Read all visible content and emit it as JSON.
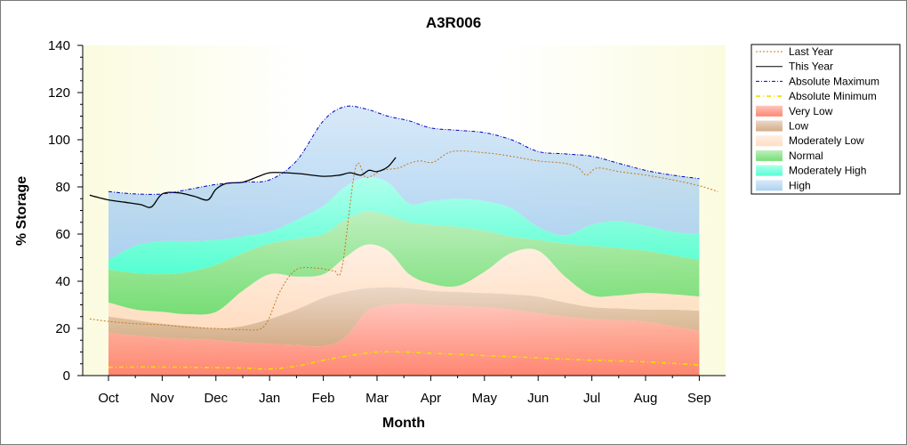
{
  "chart_data": {
    "type": "area",
    "title": "A3R006",
    "xlabel": "Month",
    "ylabel": "% Storage",
    "categories": [
      "Oct",
      "Nov",
      "Dec",
      "Jan",
      "Feb",
      "Mar",
      "Apr",
      "May",
      "Jun",
      "Jul",
      "Aug",
      "Sep"
    ],
    "ylim": [
      0,
      140
    ],
    "yticks": [
      0,
      20,
      40,
      60,
      80,
      100,
      120,
      140
    ],
    "grid": false,
    "legend_position": "right",
    "bands": [
      {
        "name": "Very Low",
        "color": "#ff7f6a",
        "x": [
          0,
          0.5,
          1,
          1.5,
          2,
          2.5,
          3,
          3.5,
          4,
          4.4,
          4.8,
          5.2,
          5.6,
          6,
          6.5,
          7,
          7.5,
          8,
          8.5,
          9,
          9.5,
          10,
          10.5,
          11
        ],
        "lower": [
          0,
          0,
          0,
          0,
          0,
          0,
          0,
          0,
          0,
          0,
          0,
          0,
          0,
          0,
          0,
          0,
          0,
          0,
          0,
          0,
          0,
          0,
          0,
          0
        ],
        "upper": [
          18,
          17,
          16,
          15.5,
          15,
          14,
          13.5,
          13,
          12.5,
          16,
          27,
          30,
          30.5,
          30,
          29.5,
          29,
          28,
          26.5,
          25,
          24,
          23.5,
          23,
          21,
          19
        ]
      },
      {
        "name": "Low",
        "color": "#d2a882",
        "x": [
          0,
          0.5,
          1,
          1.5,
          2,
          2.5,
          3,
          3.5,
          4,
          4.4,
          4.8,
          5.2,
          5.6,
          6,
          6.5,
          7,
          7.5,
          8,
          8.5,
          9,
          9.5,
          10,
          10.5,
          11
        ],
        "lower": [
          18,
          17,
          16,
          15.5,
          15,
          14,
          13.5,
          13,
          12.5,
          16,
          27,
          30,
          30.5,
          30,
          29.5,
          29,
          28,
          26.5,
          25,
          24,
          23.5,
          23,
          21,
          19
        ],
        "upper": [
          25,
          23.5,
          22,
          21,
          20,
          21,
          24,
          28,
          33,
          35.5,
          37,
          37.5,
          37,
          36,
          35.5,
          35,
          34.5,
          33.5,
          31,
          29,
          28.5,
          28,
          28,
          27.5
        ]
      },
      {
        "name": "Moderately Low",
        "color": "#ffdcc0",
        "x": [
          0,
          0.5,
          1,
          1.5,
          2,
          2.5,
          3,
          3.5,
          4,
          4.4,
          4.8,
          5.2,
          5.6,
          6,
          6.5,
          7,
          7.5,
          8,
          8.5,
          9,
          9.5,
          10,
          10.5,
          11
        ],
        "lower": [
          25,
          23.5,
          22,
          21,
          20,
          21,
          24,
          28,
          33,
          35.5,
          37,
          37.5,
          37,
          36,
          35.5,
          35,
          34.5,
          33.5,
          31,
          29,
          28.5,
          28,
          28,
          27.5
        ],
        "upper": [
          31,
          28,
          27,
          26,
          27,
          36,
          43,
          42,
          43,
          50,
          55.5,
          53,
          43,
          39,
          38,
          44,
          52,
          53,
          42,
          34,
          34,
          35,
          34.5,
          33.5
        ]
      },
      {
        "name": "Normal",
        "color": "#6fdc6f",
        "x": [
          0,
          0.5,
          1,
          1.5,
          2,
          2.5,
          3,
          3.5,
          4,
          4.4,
          4.8,
          5.2,
          5.6,
          6,
          6.5,
          7,
          7.5,
          8,
          8.5,
          9,
          9.5,
          10,
          10.5,
          11
        ],
        "lower": [
          31,
          28,
          27,
          26,
          27,
          36,
          43,
          42,
          43,
          50,
          55.5,
          53,
          43,
          39,
          38,
          44,
          52,
          53,
          42,
          34,
          34,
          35,
          34.5,
          33.5
        ],
        "upper": [
          45,
          43.5,
          43,
          44,
          47,
          52,
          56,
          58,
          60,
          66,
          69.5,
          68,
          65,
          64,
          63,
          61.5,
          59,
          57.5,
          56,
          55,
          54,
          53,
          51,
          49
        ]
      },
      {
        "name": "Moderately High",
        "color": "#4dffd2",
        "x": [
          0,
          0.5,
          1,
          1.5,
          2,
          2.5,
          3,
          3.5,
          4,
          4.4,
          4.8,
          5.2,
          5.6,
          6,
          6.5,
          7,
          7.5,
          8,
          8.5,
          9,
          9.5,
          10,
          10.5,
          11
        ],
        "lower": [
          45,
          43.5,
          43,
          44,
          47,
          52,
          56,
          58,
          60,
          66,
          69.5,
          68,
          65,
          64,
          63,
          61.5,
          59,
          57.5,
          56,
          55,
          54,
          53,
          51,
          49
        ],
        "upper": [
          49,
          55,
          57,
          57,
          57.5,
          59,
          61,
          66,
          72,
          80,
          84,
          82,
          73,
          74,
          75,
          74,
          71,
          63,
          59.5,
          64,
          65.5,
          63.5,
          61,
          60
        ]
      },
      {
        "name": "High",
        "color": "#a8cff0",
        "x": [
          0,
          0.5,
          1,
          1.5,
          2,
          2.5,
          3,
          3.5,
          4,
          4.4,
          4.8,
          5.2,
          5.6,
          6,
          6.5,
          7,
          7.5,
          8,
          8.5,
          9,
          9.5,
          10,
          10.5,
          11
        ],
        "lower": [
          49,
          55,
          57,
          57,
          57.5,
          59,
          61,
          66,
          72,
          80,
          84,
          82,
          73,
          74,
          75,
          74,
          71,
          63,
          59.5,
          64,
          65.5,
          63.5,
          61,
          60
        ],
        "upper": [
          78,
          77,
          77,
          79,
          81,
          82,
          83,
          91,
          108,
          114,
          113,
          110,
          108,
          105,
          104,
          103,
          100,
          95,
          94,
          93,
          90,
          87,
          85,
          83.5
        ]
      }
    ],
    "series": [
      {
        "name": "Last Year",
        "color": "#c8781e",
        "dash": "2,2",
        "x": [
          -0.35,
          0,
          0.5,
          1,
          1.5,
          2,
          2.5,
          2.9,
          3.2,
          3.5,
          3.9,
          4.05,
          4.2,
          4.35,
          4.6,
          4.8,
          5.1,
          5.4,
          5.6,
          5.8,
          6.05,
          6.4,
          7,
          7.5,
          8,
          8.5,
          8.75,
          8.9,
          9.1,
          9.5,
          10,
          10.5,
          11,
          11.35
        ],
        "y": [
          24,
          23,
          22,
          21.5,
          20.5,
          20,
          19.5,
          21,
          36,
          45,
          45.5,
          45,
          44.5,
          46,
          88,
          84,
          87,
          88,
          90,
          91,
          90.5,
          95,
          94.5,
          93,
          91,
          90,
          88,
          85,
          88,
          86.5,
          85,
          83,
          80.5,
          78
        ]
      },
      {
        "name": "This Year",
        "color": "#000000",
        "dash": "",
        "x": [
          -0.35,
          0,
          0.3,
          0.6,
          0.8,
          1.0,
          1.3,
          1.6,
          1.85,
          2.0,
          2.2,
          2.5,
          2.8,
          3.0,
          3.3,
          3.6,
          4.0,
          4.3,
          4.5,
          4.7,
          4.85,
          5.0,
          5.2,
          5.35
        ],
        "y": [
          76.5,
          74.5,
          73.5,
          72.5,
          71.5,
          77,
          77.5,
          76,
          74.5,
          79,
          81.5,
          82,
          84.5,
          86,
          86,
          85.5,
          84.5,
          85,
          86,
          85,
          87,
          86.5,
          88.5,
          92.5
        ]
      },
      {
        "name": "Absolute Maximum",
        "color": "#0000c8",
        "dash": "4,2,1,2",
        "x": [
          0,
          0.5,
          1,
          1.5,
          2,
          2.5,
          3,
          3.5,
          4,
          4.4,
          4.8,
          5.2,
          5.6,
          6,
          6.5,
          7,
          7.5,
          8,
          8.5,
          9,
          9.5,
          10,
          10.5,
          11
        ],
        "y": [
          78,
          77,
          77,
          79,
          81,
          82,
          83,
          91,
          108,
          114,
          113,
          110,
          108,
          105,
          104,
          103,
          100,
          95,
          94,
          93,
          90,
          87,
          85,
          83.5
        ]
      },
      {
        "name": "Absolute Minimum",
        "color": "#f0e000",
        "dash": "5,3,1,3",
        "x": [
          0,
          0.5,
          1,
          1.5,
          2,
          2.5,
          3,
          3.5,
          4,
          4.5,
          5,
          5.5,
          6,
          6.5,
          7,
          7.5,
          8,
          8.5,
          9,
          9.5,
          10,
          10.5,
          11
        ],
        "y": [
          3.5,
          3.6,
          3.6,
          3.5,
          3.4,
          3.2,
          2.8,
          4,
          6.5,
          8.5,
          10,
          10,
          9.5,
          9,
          8.5,
          8,
          7.5,
          7,
          6.5,
          6.2,
          5.8,
          5.2,
          4.5
        ]
      }
    ],
    "legend": [
      "Last Year",
      "This Year",
      "Absolute Maximum",
      "Absolute Minimum",
      "Very Low",
      "Low",
      "Moderately Low",
      "Normal",
      "Moderately High",
      "High"
    ]
  }
}
